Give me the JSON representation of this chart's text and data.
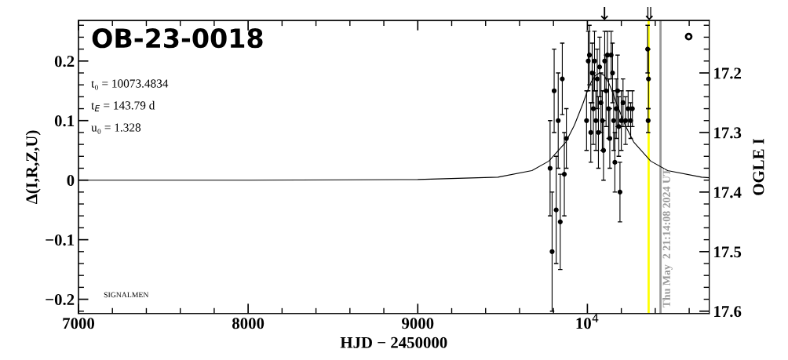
{
  "chart_data": {
    "type": "scatter",
    "title": "OB-23-0018",
    "xlabel": "HJD − 2450000",
    "ylabel": "Δ(I,R,Z,U)",
    "y2label": "OGLE I",
    "xlim": [
      7000,
      10718
    ],
    "xticks": [
      7000,
      8000,
      9000,
      {
        "value": 10000,
        "label": "10$^{4}$"
      }
    ],
    "ylim": [
      -0.224,
      0.268
    ],
    "yticks": [
      {
        "value": -0.2,
        "label": "−0.2"
      },
      {
        "value": -0.1,
        "label": "−0.1"
      },
      0,
      0.1,
      0.2
    ],
    "y2lim": [
      17.604,
      17.112
    ],
    "y2ticks": [
      17.2,
      17.3,
      17.4,
      17.5,
      17.6
    ],
    "grid": false,
    "legend": false,
    "series": [
      {
        "type": "line",
        "color": "#000000",
        "x": [
          7000,
          8000,
          9000,
          9473,
          9673,
          9773,
          9873,
          9923,
          9973,
          9998,
          10023,
          10048,
          10073,
          10098,
          10123,
          10148,
          10173,
          10223,
          10273,
          10373,
          10473,
          10673,
          10718
        ],
        "values": [
          0.0,
          0.0,
          0.001,
          0.005,
          0.016,
          0.032,
          0.064,
          0.092,
          0.128,
          0.148,
          0.165,
          0.176,
          0.18,
          0.176,
          0.165,
          0.148,
          0.128,
          0.092,
          0.064,
          0.032,
          0.016,
          0.005,
          0.004
        ]
      },
      {
        "marker": "circle",
        "color": "#000000",
        "x": [
          9780,
          9792,
          9804,
          9816,
          9828,
          9840,
          9852,
          9864,
          9876,
          9995,
          10005,
          10012,
          10020,
          10028,
          10035,
          10042,
          10050,
          10058,
          10065,
          10072,
          10080,
          10088,
          10095,
          10102,
          10110,
          10118,
          10125,
          10132,
          10140,
          10148,
          10155,
          10162,
          10170,
          10178,
          10185,
          10192,
          10200,
          10210,
          10225,
          10240,
          10255,
          10265,
          10355,
          10358,
          10360
        ],
        "values": [
          0.02,
          -0.12,
          0.15,
          -0.05,
          0.1,
          -0.07,
          0.17,
          0.01,
          0.07,
          0.1,
          0.2,
          0.21,
          0.08,
          0.18,
          0.12,
          0.2,
          0.1,
          0.17,
          0.08,
          0.19,
          0.13,
          0.1,
          0.05,
          0.2,
          0.15,
          0.21,
          0.12,
          0.07,
          0.21,
          0.18,
          0.1,
          0.03,
          0.12,
          0.15,
          0.09,
          -0.02,
          0.1,
          0.13,
          0.1,
          0.12,
          0.1,
          0.12,
          0.22,
          0.1,
          0.17
        ],
        "errors": [
          0.08,
          0.1,
          0.07,
          0.09,
          0.08,
          0.08,
          0.06,
          0.07,
          0.05,
          0.05,
          0.05,
          0.05,
          0.05,
          0.05,
          0.06,
          0.05,
          0.05,
          0.05,
          0.06,
          0.05,
          0.05,
          0.05,
          0.05,
          0.05,
          0.06,
          0.04,
          0.05,
          0.05,
          0.04,
          0.05,
          0.05,
          0.05,
          0.05,
          0.06,
          0.05,
          0.05,
          0.05,
          0.04,
          0.04,
          0.03,
          0.03,
          0.03,
          0.04,
          0.02,
          0.05
        ]
      },
      {
        "marker": "circle",
        "color": "#000000",
        "x": [
          10597
        ],
        "values": [
          0.241
        ]
      }
    ],
    "ref_lines": [
      {
        "axis": "x",
        "value": 10361,
        "color": "#ffff00"
      },
      {
        "axis": "x",
        "value": 10431,
        "color": "#999999"
      }
    ],
    "annotations": [
      "t₀ = 10073.4834",
      "t$_{E}$ = 143.79 d",
      "u₀ = 1.328",
      "SIGNALMEN",
      "Thu May  2 21:14:08 2024 UT",
      "↓",
      "⇓"
    ]
  }
}
